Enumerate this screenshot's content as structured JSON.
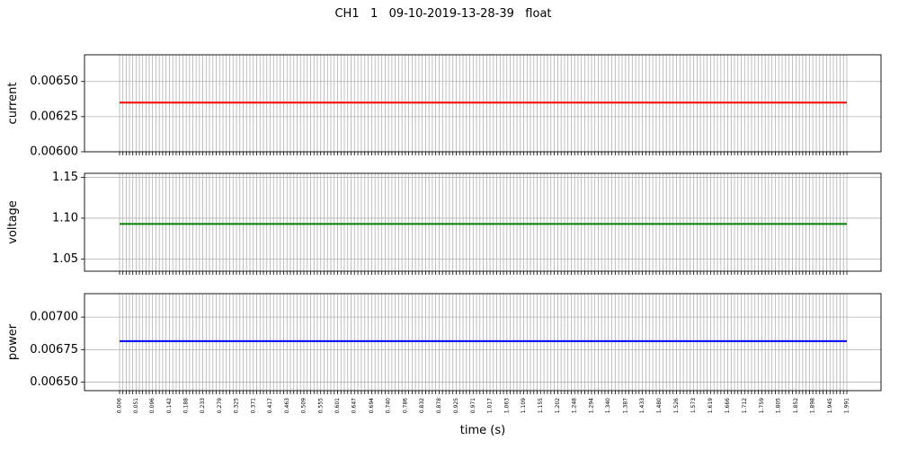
{
  "figure": {
    "title": "CH1   1   09-10-2019-13-28-39   float",
    "xlabel": "time (s)"
  },
  "chart_data": {
    "type": "line",
    "x": [
      0.006,
      0.051,
      0.096,
      0.142,
      0.188,
      0.233,
      0.279,
      0.325,
      0.371,
      0.417,
      0.463,
      0.509,
      0.555,
      0.601,
      0.647,
      0.694,
      0.74,
      0.786,
      0.832,
      0.878,
      0.925,
      0.971,
      1.017,
      1.063,
      1.109,
      1.155,
      1.202,
      1.248,
      1.294,
      1.34,
      1.387,
      1.433,
      1.48,
      1.526,
      1.573,
      1.619,
      1.666,
      1.712,
      1.759,
      1.805,
      1.852,
      1.898,
      1.945,
      1.991
    ],
    "xtick_labels": [
      "0.006",
      "0.051",
      "0.096",
      "0.142",
      "0.188",
      "0.233",
      "0.279",
      "0.325",
      "0.371",
      "0.417",
      "0.463",
      "0.509",
      "0.555",
      "0.601",
      "0.647",
      "0.694",
      "0.740",
      "0.786",
      "0.832",
      "0.878",
      "0.925",
      "0.971",
      "1.017",
      "1.063",
      "1.109",
      "1.155",
      "1.202",
      "1.248",
      "1.294",
      "1.340",
      "1.387",
      "1.433",
      "1.480",
      "1.526",
      "1.573",
      "1.619",
      "1.666",
      "1.712",
      "1.759",
      "1.805",
      "1.852",
      "1.898",
      "1.945",
      "1.991"
    ],
    "minor_ticks_per_interval": 4,
    "grid": true,
    "panels": [
      {
        "name": "current",
        "ylabel": "current",
        "color": "#ff0000",
        "value": 0.00635,
        "ylim": [
          0.006,
          0.00669
        ],
        "yticks": [
          0.006,
          0.00625,
          0.0065
        ],
        "ytick_labels": [
          "0.00600",
          "0.00625",
          "0.00650"
        ]
      },
      {
        "name": "voltage",
        "ylabel": "voltage",
        "color": "#008000",
        "value": 1.093,
        "ylim": [
          1.035,
          1.155
        ],
        "yticks": [
          1.05,
          1.1,
          1.15
        ],
        "ytick_labels": [
          "1.05",
          "1.10",
          "1.15"
        ]
      },
      {
        "name": "power",
        "ylabel": "power",
        "color": "#0000ff",
        "value": 0.006815,
        "ylim": [
          0.006435,
          0.00718
        ],
        "yticks": [
          0.0065,
          0.00675,
          0.007
        ],
        "ytick_labels": [
          "0.00650",
          "0.00675",
          "0.00700"
        ]
      }
    ]
  }
}
